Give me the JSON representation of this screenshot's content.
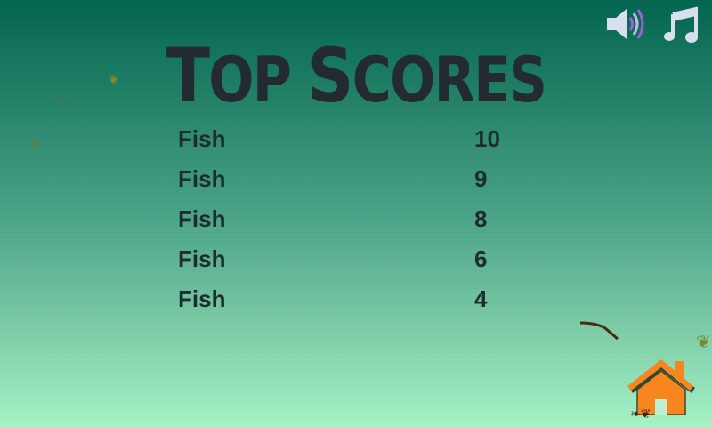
{
  "title": {
    "first": "T",
    "rest1": "OP ",
    "second": "S",
    "rest2": "CORES"
  },
  "scores": [
    {
      "name": "Fish",
      "score": "10"
    },
    {
      "name": "Fish",
      "score": "9"
    },
    {
      "name": "Fish",
      "score": "8"
    },
    {
      "name": "Fish",
      "score": "6"
    },
    {
      "name": "Fish",
      "score": "4"
    }
  ],
  "icons": {
    "sound": "speaker-icon",
    "music": "music-note-icon",
    "home": "home-icon"
  },
  "colors": {
    "title": "#232b31",
    "text": "#1e2c2d",
    "home": "#f7861f",
    "sound_waves": "#a05fd0"
  }
}
